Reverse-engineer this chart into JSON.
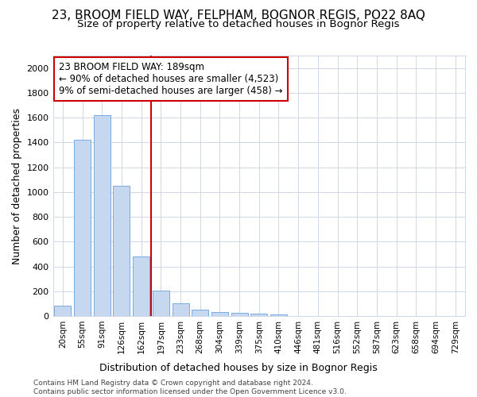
{
  "title1": "23, BROOM FIELD WAY, FELPHAM, BOGNOR REGIS, PO22 8AQ",
  "title2": "Size of property relative to detached houses in Bognor Regis",
  "xlabel": "Distribution of detached houses by size in Bognor Regis",
  "ylabel": "Number of detached properties",
  "bar_labels": [
    "20sqm",
    "55sqm",
    "91sqm",
    "126sqm",
    "162sqm",
    "197sqm",
    "233sqm",
    "268sqm",
    "304sqm",
    "339sqm",
    "375sqm",
    "410sqm",
    "446sqm",
    "481sqm",
    "516sqm",
    "552sqm",
    "587sqm",
    "623sqm",
    "658sqm",
    "694sqm",
    "729sqm"
  ],
  "bar_values": [
    85,
    1420,
    1620,
    1050,
    480,
    205,
    105,
    50,
    35,
    25,
    20,
    15,
    0,
    0,
    0,
    0,
    0,
    0,
    0,
    0,
    0
  ],
  "bar_color": "#c5d8f0",
  "bar_edge_color": "#7aace0",
  "vline_index": 4.5,
  "vline_color": "#cc0000",
  "ylim": [
    0,
    2100
  ],
  "yticks": [
    0,
    200,
    400,
    600,
    800,
    1000,
    1200,
    1400,
    1600,
    1800,
    2000
  ],
  "ann_line1": "23 BROOM FIELD WAY: 189sqm",
  "ann_line2": "← 90% of detached houses are smaller (4,523)",
  "ann_line3": "9% of semi-detached houses are larger (458) →",
  "ann_box_fc": "#ffffff",
  "ann_box_ec": "#cc0000",
  "footer": "Contains HM Land Registry data © Crown copyright and database right 2024.\nContains public sector information licensed under the Open Government Licence v3.0.",
  "bg_color": "#ffffff",
  "grid_color": "#d0d8e8",
  "spine_color": "#d0d8e8"
}
